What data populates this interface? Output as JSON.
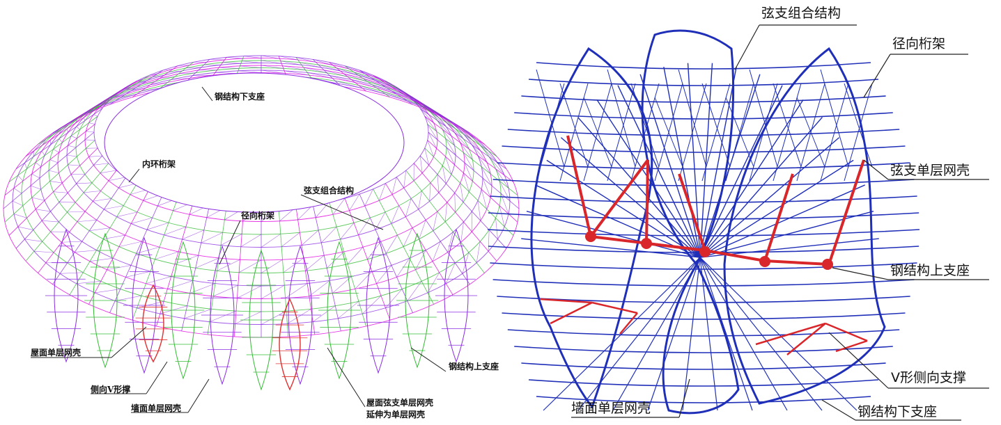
{
  "left_figure": {
    "labels": {
      "steel_lower_support": "钢结构下支座",
      "inner_ring_truss": "内环桁架",
      "string_combined_structure": "弦支组合结构",
      "radial_truss": "径向桁架",
      "roof_single_layer_shell": "屋面单层网壳",
      "lateral_v_bracing": "侧向V形撑",
      "wall_single_layer_shell": "墙面单层网壳",
      "roof_string_shell_line1": "屋面弦支单层网壳",
      "roof_string_shell_line2": "延伸为单层网壳",
      "steel_upper_support": "钢结构上支座"
    },
    "colors": {
      "mesh_purple": "#8a2be2",
      "mesh_magenta": "#e000e0",
      "mesh_green": "#33bb33",
      "mesh_red": "#e03030"
    }
  },
  "right_figure": {
    "labels": {
      "string_combined_structure": "弦支组合结构",
      "radial_truss": "径向桁架",
      "string_single_layer_shell": "弦支单层网壳",
      "steel_upper_support": "钢结构上支座",
      "v_lateral_bracing": "V形侧向支撑",
      "wall_single_layer_shell": "墙面单层网壳",
      "steel_lower_support": "钢结构下支座"
    },
    "colors": {
      "frame_blue": "#1f2fb8",
      "bracing_red": "#d8262a"
    }
  }
}
